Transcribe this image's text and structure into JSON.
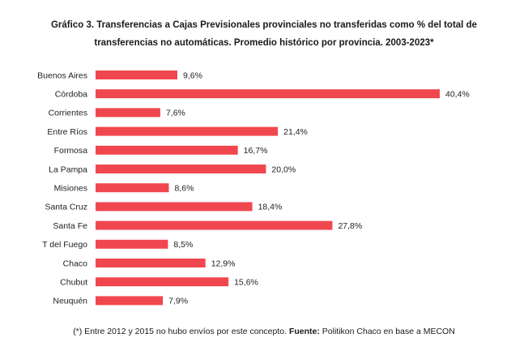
{
  "colors": {
    "bar": "#f0474f",
    "text": "#222222"
  },
  "chart_data": {
    "type": "bar",
    "orientation": "horizontal",
    "title_line1": "Gráfico 3. Transferencias a Cajas Previsionales provinciales no transferidas como % del total de",
    "title_line2": "transferencias no automáticas. Promedio histórico por provincia. 2003-2023*",
    "categories": [
      "Buenos Aires",
      "Córdoba",
      "Corrientes",
      "Entre Ríos",
      "Formosa",
      "La Pampa",
      "Misiones",
      "Santa Cruz",
      "Santa Fe",
      "T del Fuego",
      "Chaco",
      "Chubut",
      "Neuquén"
    ],
    "values": [
      9.6,
      40.4,
      7.6,
      21.4,
      16.7,
      20.0,
      8.6,
      18.4,
      27.8,
      8.5,
      12.9,
      15.6,
      7.9
    ],
    "value_labels": [
      "9,6%",
      "40,4%",
      "7,6%",
      "21,4%",
      "16,7%",
      "20,0%",
      "8,6%",
      "18,4%",
      "27,8%",
      "8,5%",
      "12,9%",
      "15,6%",
      "7,9%"
    ],
    "xlim": [
      0,
      40.4
    ],
    "grid": false,
    "legend": "none"
  },
  "footnote": {
    "prefix": "(*) Entre 2012 y 2015 no hubo envíos por este concepto. ",
    "source_label": "Fuente:",
    "source_text": " Politikon Chaco en base a MECON"
  }
}
